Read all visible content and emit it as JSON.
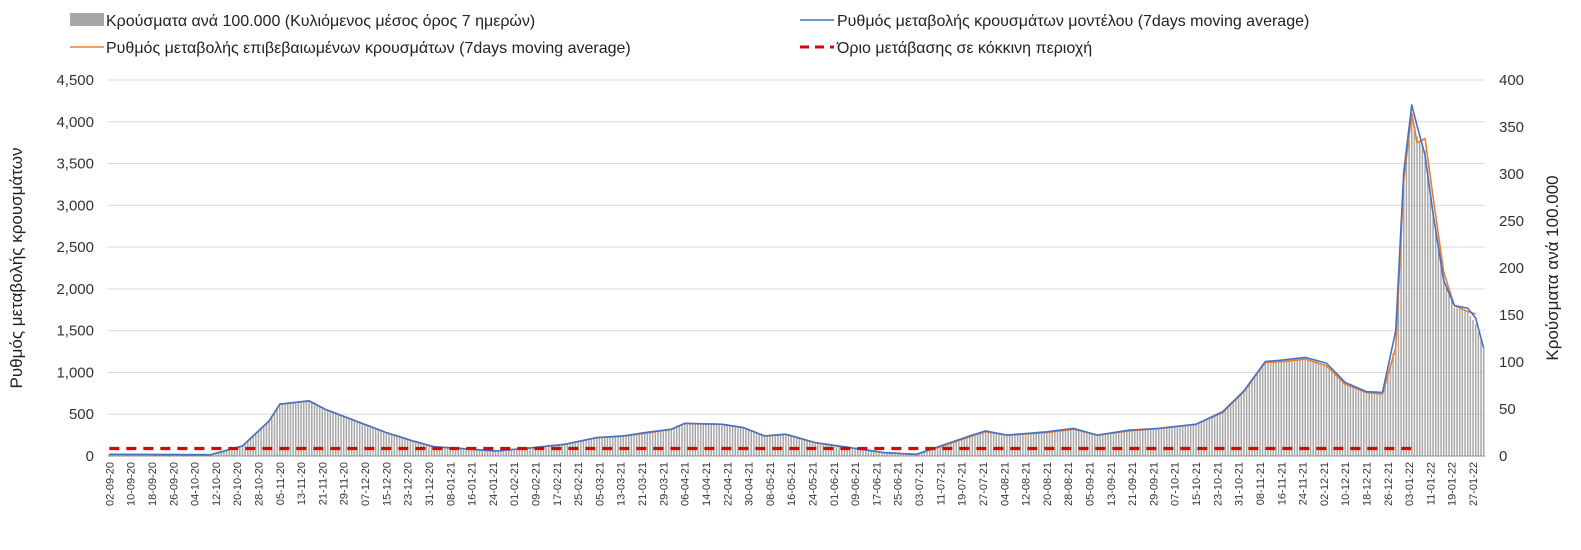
{
  "chart_data": {
    "type": "bar",
    "legend": {
      "placement": "top",
      "entries": [
        {
          "id": "bars",
          "label": "Κρούσματα ανά 100.000 (Κυλιόμενος μέσος όρος 7 ημερών)",
          "color": "#a6a6a6",
          "style": "bar"
        },
        {
          "id": "model",
          "label": "Ρυθμός μεταβολής κρουσμάτων μοντέλου (7days moving average)",
          "color": "#4472c4",
          "style": "line"
        },
        {
          "id": "confirmed",
          "label": "Ρυθμός μεταβολής επιβεβαιωμένων κρουσμάτων (7days moving average)",
          "color": "#ed7d31",
          "style": "line"
        },
        {
          "id": "threshold",
          "label": "Όριο μετάβασης σε κόκκινη περιοχή",
          "color": "#e00000",
          "style": "dashed"
        }
      ]
    },
    "left_axis": {
      "label": "Ρυθμός μεταβολής κρουσμάτων",
      "min": 0,
      "max": 4500,
      "step": 500,
      "tick_labels": [
        "0",
        "500",
        "1,000",
        "1,500",
        "2,000",
        "2,500",
        "3,000",
        "3,500",
        "4,000",
        "4,500"
      ]
    },
    "right_axis": {
      "label": "Κρούσματα ανά 100.000",
      "min": 0,
      "max": 400,
      "step": 50,
      "tick_labels": [
        "0",
        "50",
        "100",
        "150",
        "200",
        "250",
        "300",
        "350",
        "400"
      ]
    },
    "grid": true,
    "x_start": "2020-09-02",
    "x_end": "2022-01-31",
    "x_tick_labels": [
      "02-09-20",
      "10-09-20",
      "18-09-20",
      "26-09-20",
      "04-10-20",
      "12-10-20",
      "20-10-20",
      "28-10-20",
      "05-11-20",
      "13-11-20",
      "21-11-20",
      "29-11-20",
      "07-12-20",
      "15-12-20",
      "23-12-20",
      "31-12-20",
      "08-01-21",
      "16-01-21",
      "24-01-21",
      "01-02-21",
      "09-02-21",
      "17-02-21",
      "25-02-21",
      "05-03-21",
      "13-03-21",
      "21-03-21",
      "29-03-21",
      "06-04-21",
      "14-04-21",
      "22-04-21",
      "30-04-21",
      "08-05-21",
      "16-05-21",
      "24-05-21",
      "01-06-21",
      "09-06-21",
      "17-06-21",
      "25-06-21",
      "03-07-21",
      "11-07-21",
      "19-07-21",
      "27-07-21",
      "04-08-21",
      "12-08-21",
      "20-08-21",
      "28-08-21",
      "05-09-21",
      "13-09-21",
      "21-09-21",
      "29-09-21",
      "07-10-21",
      "15-10-21",
      "23-10-21",
      "31-10-21",
      "08-11-21",
      "16-11-21",
      "24-11-21",
      "02-12-21",
      "10-12-21",
      "18-12-21",
      "26-12-21",
      "03-01-22",
      "11-01-22",
      "19-01-22",
      "27-01-22"
    ],
    "series": [
      {
        "name": "Ρυθμός μεταβολής επιβεβαιωμένων κρουσμάτων (7days moving average)",
        "axis": "left",
        "type": "line",
        "points": [
          [
            "2020-09-02",
            20
          ],
          [
            "2020-10-10",
            15
          ],
          [
            "2020-10-22",
            120
          ],
          [
            "2020-11-01",
            420
          ],
          [
            "2020-11-05",
            620
          ],
          [
            "2020-11-16",
            660
          ],
          [
            "2020-11-22",
            560
          ],
          [
            "2020-12-01",
            450
          ],
          [
            "2020-12-15",
            280
          ],
          [
            "2020-12-25",
            180
          ],
          [
            "2021-01-02",
            110
          ],
          [
            "2021-01-12",
            90
          ],
          [
            "2021-01-25",
            60
          ],
          [
            "2021-02-05",
            90
          ],
          [
            "2021-02-20",
            140
          ],
          [
            "2021-03-04",
            220
          ],
          [
            "2021-03-14",
            240
          ],
          [
            "2021-03-22",
            270
          ],
          [
            "2021-04-01",
            320
          ],
          [
            "2021-04-06",
            390
          ],
          [
            "2021-04-20",
            380
          ],
          [
            "2021-04-28",
            340
          ],
          [
            "2021-05-06",
            240
          ],
          [
            "2021-05-14",
            260
          ],
          [
            "2021-05-25",
            160
          ],
          [
            "2021-06-05",
            110
          ],
          [
            "2021-06-20",
            40
          ],
          [
            "2021-07-02",
            20
          ],
          [
            "2021-07-12",
            120
          ],
          [
            "2021-07-22",
            230
          ],
          [
            "2021-07-28",
            290
          ],
          [
            "2021-08-05",
            250
          ],
          [
            "2021-08-20",
            280
          ],
          [
            "2021-08-30",
            320
          ],
          [
            "2021-09-08",
            250
          ],
          [
            "2021-09-20",
            300
          ],
          [
            "2021-10-01",
            330
          ],
          [
            "2021-10-15",
            380
          ],
          [
            "2021-10-25",
            520
          ],
          [
            "2021-11-02",
            770
          ],
          [
            "2021-11-10",
            1120
          ],
          [
            "2021-11-17",
            1130
          ],
          [
            "2021-11-25",
            1160
          ],
          [
            "2021-12-03",
            1080
          ],
          [
            "2021-12-10",
            860
          ],
          [
            "2021-12-18",
            760
          ],
          [
            "2021-12-24",
            740
          ],
          [
            "2021-12-29",
            1300
          ],
          [
            "2022-01-01",
            3300
          ],
          [
            "2022-01-04",
            4100
          ],
          [
            "2022-01-06",
            3750
          ],
          [
            "2022-01-09",
            3800
          ],
          [
            "2022-01-12",
            3100
          ],
          [
            "2022-01-16",
            2200
          ],
          [
            "2022-01-20",
            1800
          ],
          [
            "2022-01-25",
            1730
          ],
          [
            "2022-01-28",
            1700
          ]
        ]
      },
      {
        "name": "Ρυθμός μεταβολής κρουσμάτων μοντέλου (7days moving average)",
        "axis": "left",
        "type": "line",
        "points": [
          [
            "2020-09-02",
            20
          ],
          [
            "2020-10-10",
            15
          ],
          [
            "2020-10-22",
            120
          ],
          [
            "2020-11-01",
            420
          ],
          [
            "2020-11-05",
            620
          ],
          [
            "2020-11-16",
            660
          ],
          [
            "2020-11-22",
            560
          ],
          [
            "2020-12-01",
            450
          ],
          [
            "2020-12-15",
            280
          ],
          [
            "2020-12-25",
            180
          ],
          [
            "2021-01-02",
            110
          ],
          [
            "2021-01-12",
            90
          ],
          [
            "2021-01-25",
            60
          ],
          [
            "2021-02-05",
            90
          ],
          [
            "2021-02-20",
            140
          ],
          [
            "2021-03-04",
            220
          ],
          [
            "2021-03-14",
            240
          ],
          [
            "2021-03-22",
            280
          ],
          [
            "2021-04-01",
            320
          ],
          [
            "2021-04-06",
            390
          ],
          [
            "2021-04-20",
            380
          ],
          [
            "2021-04-28",
            340
          ],
          [
            "2021-05-06",
            240
          ],
          [
            "2021-05-14",
            260
          ],
          [
            "2021-05-25",
            160
          ],
          [
            "2021-06-05",
            110
          ],
          [
            "2021-06-20",
            40
          ],
          [
            "2021-07-02",
            20
          ],
          [
            "2021-07-12",
            130
          ],
          [
            "2021-07-22",
            240
          ],
          [
            "2021-07-28",
            300
          ],
          [
            "2021-08-05",
            250
          ],
          [
            "2021-08-20",
            290
          ],
          [
            "2021-08-30",
            330
          ],
          [
            "2021-09-08",
            250
          ],
          [
            "2021-09-20",
            310
          ],
          [
            "2021-10-01",
            330
          ],
          [
            "2021-10-15",
            380
          ],
          [
            "2021-10-25",
            530
          ],
          [
            "2021-11-02",
            780
          ],
          [
            "2021-11-10",
            1130
          ],
          [
            "2021-11-17",
            1150
          ],
          [
            "2021-11-25",
            1180
          ],
          [
            "2021-12-03",
            1110
          ],
          [
            "2021-12-10",
            880
          ],
          [
            "2021-12-18",
            770
          ],
          [
            "2021-12-24",
            760
          ],
          [
            "2021-12-29",
            1500
          ],
          [
            "2022-01-01",
            3400
          ],
          [
            "2022-01-04",
            4200
          ],
          [
            "2022-01-06",
            3950
          ],
          [
            "2022-01-09",
            3600
          ],
          [
            "2022-01-12",
            2900
          ],
          [
            "2022-01-16",
            2100
          ],
          [
            "2022-01-20",
            1800
          ],
          [
            "2022-01-25",
            1770
          ],
          [
            "2022-01-28",
            1650
          ],
          [
            "2022-01-31",
            1290
          ]
        ]
      },
      {
        "name": "Κρούσματα ανά 100.000 (Κυλιόμενος μέσος όρος 7 ημερών)",
        "axis": "right",
        "type": "bar",
        "points": [
          [
            "2020-09-02",
            2
          ],
          [
            "2020-10-10",
            1
          ],
          [
            "2020-10-22",
            11
          ],
          [
            "2020-11-01",
            37
          ],
          [
            "2020-11-05",
            55
          ],
          [
            "2020-11-16",
            59
          ],
          [
            "2020-11-22",
            50
          ],
          [
            "2020-12-01",
            40
          ],
          [
            "2020-12-15",
            25
          ],
          [
            "2020-12-25",
            16
          ],
          [
            "2021-01-02",
            10
          ],
          [
            "2021-01-12",
            8
          ],
          [
            "2021-01-25",
            5
          ],
          [
            "2021-02-05",
            8
          ],
          [
            "2021-02-20",
            12
          ],
          [
            "2021-03-04",
            20
          ],
          [
            "2021-03-14",
            21
          ],
          [
            "2021-03-22",
            24
          ],
          [
            "2021-04-01",
            28
          ],
          [
            "2021-04-06",
            35
          ],
          [
            "2021-04-20",
            34
          ],
          [
            "2021-04-28",
            30
          ],
          [
            "2021-05-06",
            21
          ],
          [
            "2021-05-14",
            23
          ],
          [
            "2021-05-25",
            14
          ],
          [
            "2021-06-05",
            10
          ],
          [
            "2021-06-20",
            4
          ],
          [
            "2021-07-02",
            2
          ],
          [
            "2021-07-12",
            11
          ],
          [
            "2021-07-22",
            21
          ],
          [
            "2021-07-28",
            26
          ],
          [
            "2021-08-05",
            22
          ],
          [
            "2021-08-20",
            25
          ],
          [
            "2021-08-30",
            28
          ],
          [
            "2021-09-08",
            22
          ],
          [
            "2021-09-20",
            27
          ],
          [
            "2021-10-01",
            29
          ],
          [
            "2021-10-15",
            34
          ],
          [
            "2021-10-25",
            46
          ],
          [
            "2021-11-02",
            68
          ],
          [
            "2021-11-10",
            100
          ],
          [
            "2021-11-17",
            101
          ],
          [
            "2021-11-25",
            103
          ],
          [
            "2021-12-03",
            96
          ],
          [
            "2021-12-10",
            76
          ],
          [
            "2021-12-18",
            68
          ],
          [
            "2021-12-24",
            66
          ],
          [
            "2021-12-29",
            120
          ],
          [
            "2022-01-01",
            290
          ],
          [
            "2022-01-04",
            360
          ],
          [
            "2022-01-06",
            340
          ],
          [
            "2022-01-09",
            325
          ],
          [
            "2022-01-12",
            260
          ],
          [
            "2022-01-16",
            190
          ],
          [
            "2022-01-20",
            158
          ],
          [
            "2022-01-25",
            154
          ],
          [
            "2022-01-28",
            140
          ],
          [
            "2022-01-31",
            115
          ]
        ]
      },
      {
        "name": "Όριο μετάβασης σε κόκκινη περιοχή",
        "axis": "right",
        "type": "line",
        "style": "dashed",
        "points": [
          [
            "2020-09-02",
            8
          ],
          [
            "2022-01-06",
            8
          ]
        ]
      }
    ]
  }
}
